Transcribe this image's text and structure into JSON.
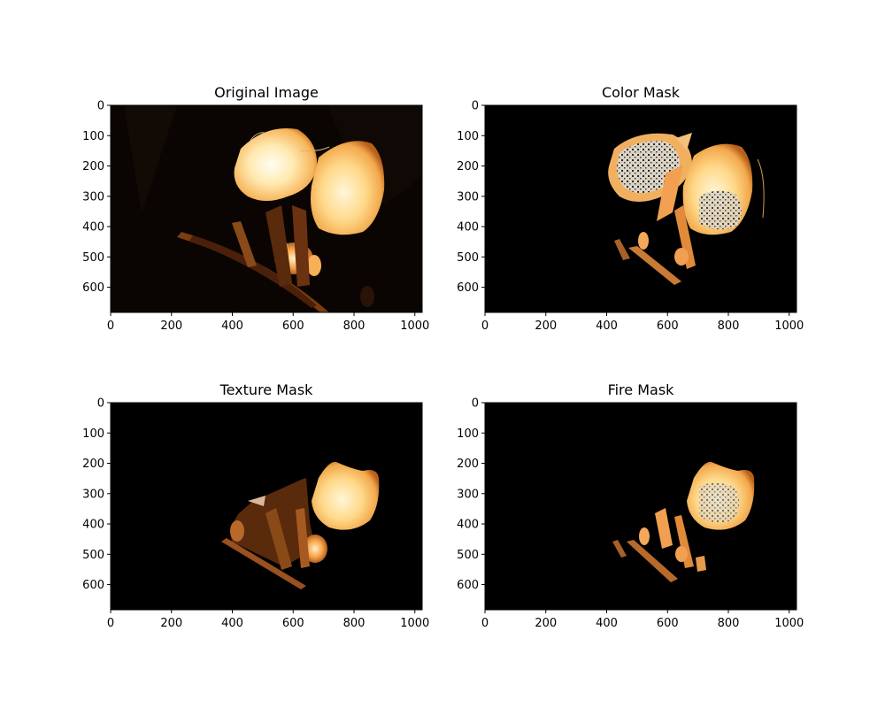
{
  "figure": {
    "background": "#ffffff"
  },
  "chart_data": [
    {
      "type": "image",
      "title": "Original Image",
      "xlim": [
        0,
        1024
      ],
      "ylim": [
        683,
        0
      ],
      "xticks": [
        0,
        200,
        400,
        600,
        800,
        1000
      ],
      "yticks": [
        0,
        100,
        200,
        300,
        400,
        500,
        600
      ],
      "content": "night photo of two glowing orange paper lanterns above a flaming burner",
      "colors": {
        "background": "#0a0502",
        "glow": "#ffe6a8",
        "flame": "#ff9a2e",
        "ember": "#7a3c10"
      }
    },
    {
      "type": "image",
      "title": "Color Mask",
      "xlim": [
        0,
        1024
      ],
      "ylim": [
        683,
        0
      ],
      "xticks": [
        0,
        200,
        400,
        600,
        800,
        1000
      ],
      "yticks": [
        0,
        100,
        200,
        300,
        400,
        500,
        600
      ],
      "content": "both lanterns and burner flames kept on black; speckled white texture inside",
      "colors": {
        "background": "#000000",
        "glow": "#ffe2a0",
        "speckle": "#f4f4f4",
        "flame": "#f0a050"
      }
    },
    {
      "type": "image",
      "title": "Texture Mask",
      "xlim": [
        0,
        1024
      ],
      "ylim": [
        683,
        0
      ],
      "xticks": [
        0,
        200,
        400,
        600,
        800,
        1000
      ],
      "yticks": [
        0,
        100,
        200,
        300,
        400,
        500,
        600
      ],
      "content": "right lantern plus burner and stand region kept on black",
      "colors": {
        "background": "#000000",
        "glow": "#fff0c0",
        "flame": "#e89040",
        "ember": "#6a3410"
      }
    },
    {
      "type": "image",
      "title": "Fire Mask",
      "xlim": [
        0,
        1024
      ],
      "ylim": [
        683,
        0
      ],
      "xticks": [
        0,
        200,
        400,
        600,
        800,
        1000
      ],
      "yticks": [
        0,
        100,
        200,
        300,
        400,
        500,
        600
      ],
      "content": "right lantern and sparse flame fragments kept on black",
      "colors": {
        "background": "#000000",
        "glow": "#ffe6b0",
        "flame": "#f0a050"
      }
    }
  ]
}
